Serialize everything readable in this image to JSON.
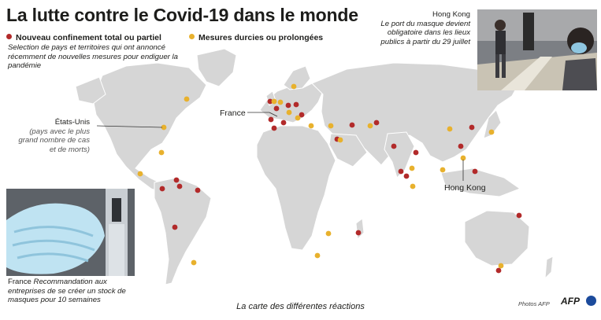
{
  "title": "La lutte contre le Covid-19 dans le monde",
  "legend": {
    "red_label": "Nouveau confinement total ou partiel",
    "yellow_label": "Mesures durcies ou prolongées",
    "red_color": "#b22a2a",
    "yellow_color": "#e8b12d"
  },
  "note": "Selection de pays et territoires qui ont annoncé récemment de nouvelles mesures pour endiguer la pandémie",
  "hongkong_box": {
    "place": "Hong Kong",
    "text": "Le port du masque devient obligatoire dans les lieux publics à partir du 29 juillet"
  },
  "us_box": {
    "place": "États-Unis",
    "text": "(pays avec le plus grand nombre de cas et de morts)"
  },
  "france_map_label": "France",
  "hongkong_map_label": "Hong Kong",
  "france_box": {
    "place": "France",
    "text": "Recommandation aux entreprises de se créer un stock de masques pour 10 semaines"
  },
  "caption": "La carte des différentes réactions",
  "credit": "Photos AFP",
  "agency": "AFP",
  "map_colors": {
    "land": "#d6d6d6",
    "border": "#ffffff",
    "water": "#ffffff"
  },
  "icons": [
    "hong-kong-photo",
    "mask-photo",
    "agency-logo-icon"
  ]
}
